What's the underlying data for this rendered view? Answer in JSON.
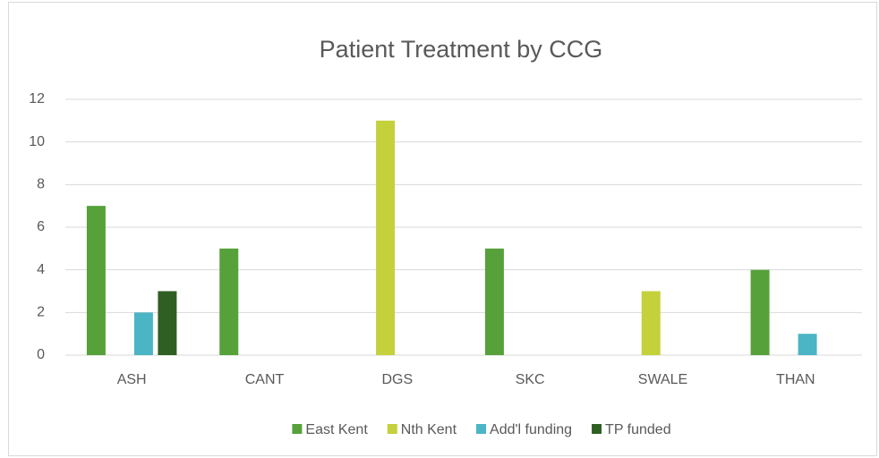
{
  "chart_data": {
    "type": "bar",
    "title": "Patient Treatment by CCG",
    "categories": [
      "ASH",
      "CANT",
      "DGS",
      "SKC",
      "SWALE",
      "THAN"
    ],
    "series": [
      {
        "name": "East Kent",
        "color": "#56a13a",
        "values": [
          7,
          5,
          0,
          5,
          0,
          4
        ]
      },
      {
        "name": "Nth Kent",
        "color": "#c4d13b",
        "values": [
          0,
          0,
          11,
          0,
          3,
          0
        ]
      },
      {
        "name": "Add'l funding",
        "color": "#4bb5c5",
        "values": [
          2,
          0,
          0,
          0,
          0,
          1
        ]
      },
      {
        "name": "TP funded",
        "color": "#2f5f23",
        "values": [
          3,
          0,
          0,
          0,
          0,
          0
        ]
      }
    ],
    "ylim": [
      0,
      12
    ],
    "yticks": [
      0,
      2,
      4,
      6,
      8,
      10,
      12
    ],
    "grid": true,
    "legend": "bottom"
  }
}
